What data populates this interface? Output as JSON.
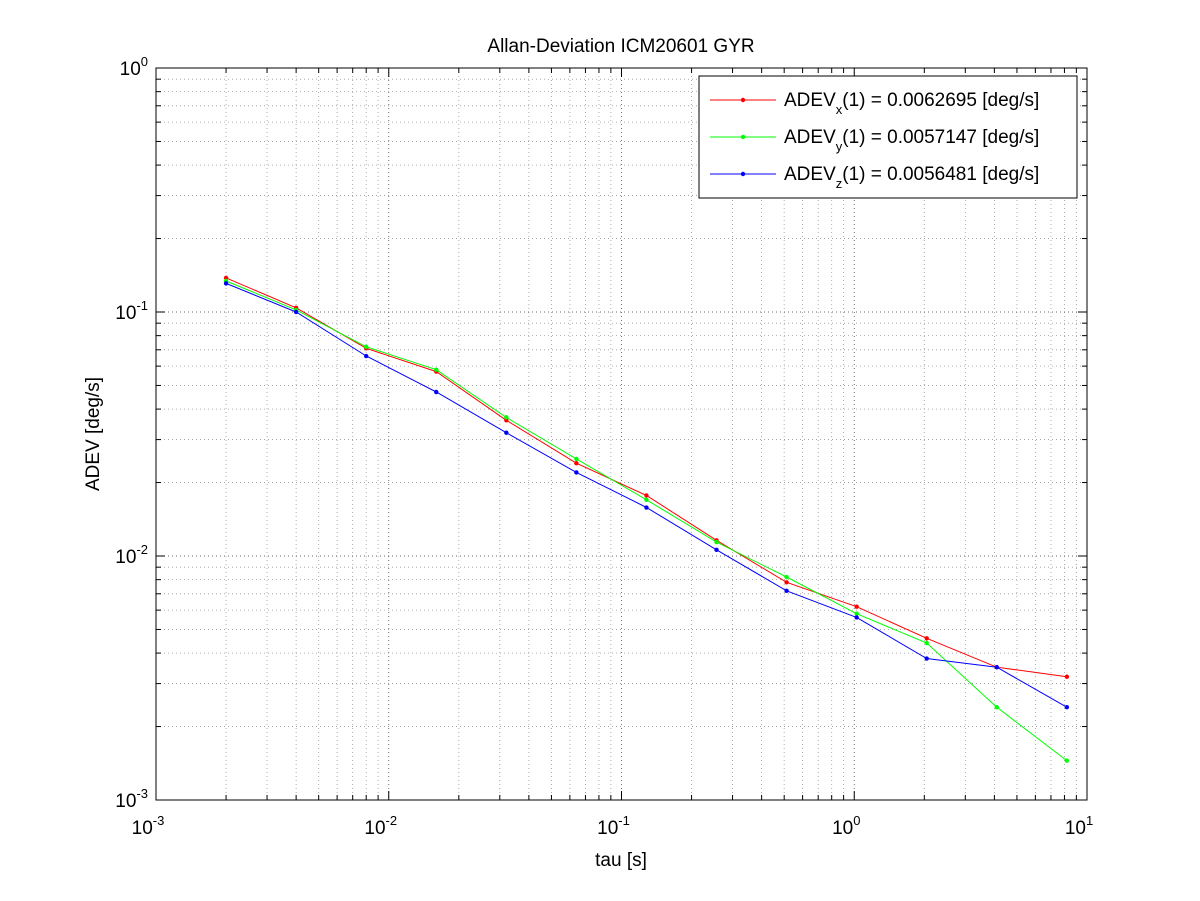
{
  "chart_data": {
    "type": "line",
    "title": "Allan-Deviation ICM20601 GYR",
    "xlabel": "tau [s]",
    "ylabel": "ADEV [deg/s]",
    "xscale": "log",
    "yscale": "log",
    "xlim": [
      0.001,
      10
    ],
    "ylim": [
      0.001,
      1
    ],
    "grid": true,
    "legend_position": "top-right",
    "x_ticks": [
      {
        "base": "10",
        "exp": "-3"
      },
      {
        "base": "10",
        "exp": "-2"
      },
      {
        "base": "10",
        "exp": "-1"
      },
      {
        "base": "10",
        "exp": "0"
      },
      {
        "base": "10",
        "exp": "1"
      }
    ],
    "y_ticks": [
      {
        "base": "10",
        "exp": "-3"
      },
      {
        "base": "10",
        "exp": "-2"
      },
      {
        "base": "10",
        "exp": "-1"
      },
      {
        "base": "10",
        "exp": "0"
      }
    ],
    "x": [
      0.002,
      0.004,
      0.008,
      0.016,
      0.032,
      0.064,
      0.128,
      0.256,
      0.512,
      1.024,
      2.048,
      4.096,
      8.192
    ],
    "series": [
      {
        "name": "ADEVx(1) = 0.0062695 [deg/s]",
        "label_pre": "ADEV",
        "label_sub": "x",
        "label_post": "(1) = 0.0062695 [deg/s]",
        "color": "#ff0000",
        "values": [
          0.138,
          0.104,
          0.071,
          0.057,
          0.036,
          0.024,
          0.0177,
          0.0116,
          0.0078,
          0.0062,
          0.0046,
          0.0035,
          0.0032
        ]
      },
      {
        "name": "ADEVy(1) = 0.0057147 [deg/s]",
        "label_pre": "ADEV",
        "label_sub": "y",
        "label_post": "(1) = 0.0057147 [deg/s]",
        "color": "#00ff00",
        "values": [
          0.134,
          0.102,
          0.072,
          0.058,
          0.037,
          0.025,
          0.017,
          0.0114,
          0.0082,
          0.0058,
          0.0044,
          0.0024,
          0.00145
        ]
      },
      {
        "name": "ADEVz(1) = 0.0056481 [deg/s]",
        "label_pre": "ADEV",
        "label_sub": "z",
        "label_post": "(1) = 0.0056481 [deg/s]",
        "color": "#0000ff",
        "values": [
          0.131,
          0.1,
          0.066,
          0.047,
          0.032,
          0.022,
          0.0158,
          0.0106,
          0.0072,
          0.0056,
          0.0038,
          0.0035,
          0.0024
        ]
      }
    ]
  }
}
